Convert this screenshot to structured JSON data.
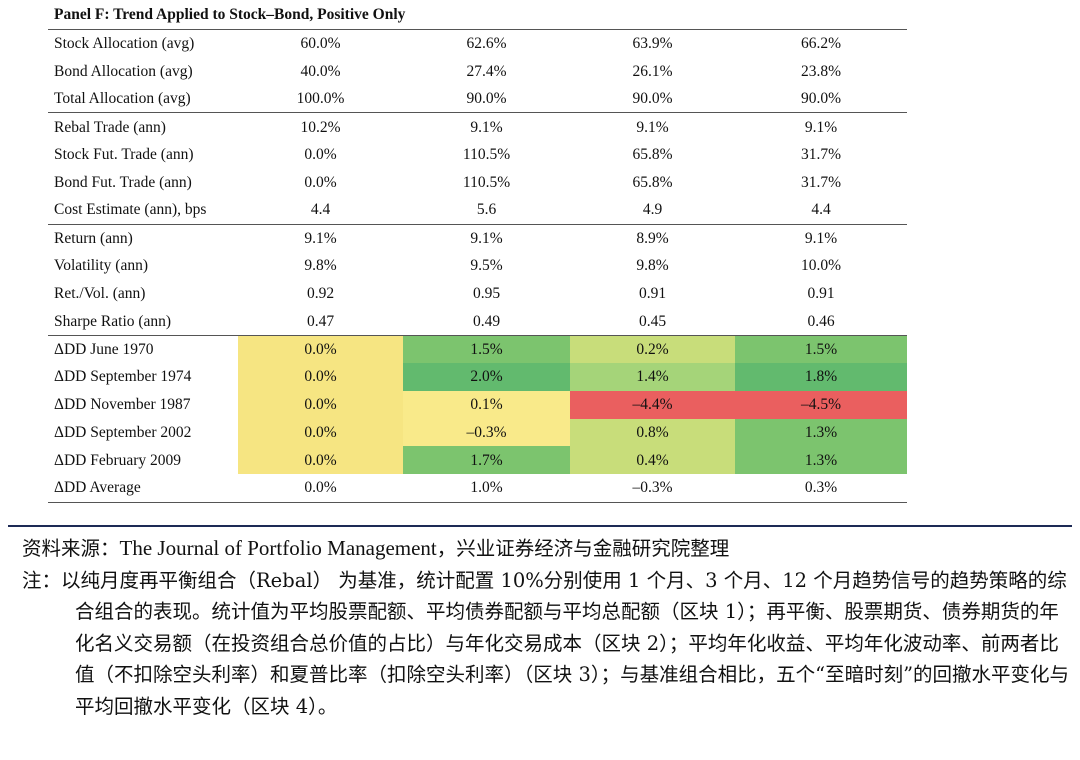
{
  "panel_title": "Panel F: Trend Applied to Stock–Bond, Positive Only",
  "colors": {
    "yellow": "#f6e582",
    "light_green": "#a5d479",
    "green": "#7cc46e",
    "dark_green": "#62ba6e",
    "red": "#ea5f5f",
    "pale_yellow": "#f9ea8a",
    "yellow_green": "#c8dd7a"
  },
  "rows": [
    {
      "label": "Stock Allocation (avg)",
      "values": [
        "60.0%",
        "62.6%",
        "63.9%",
        "66.2%"
      ],
      "group": "top"
    },
    {
      "label": "Bond Allocation (avg)",
      "values": [
        "40.0%",
        "27.4%",
        "26.1%",
        "23.8%"
      ]
    },
    {
      "label": "Total Allocation (avg)",
      "values": [
        "100.0%",
        "90.0%",
        "90.0%",
        "90.0%"
      ]
    },
    {
      "label": "Rebal Trade (ann)",
      "values": [
        "10.2%",
        "9.1%",
        "9.1%",
        "9.1%"
      ],
      "group": "sep"
    },
    {
      "label": "Stock Fut. Trade (ann)",
      "values": [
        "0.0%",
        "110.5%",
        "65.8%",
        "31.7%"
      ]
    },
    {
      "label": "Bond Fut. Trade (ann)",
      "values": [
        "0.0%",
        "110.5%",
        "65.8%",
        "31.7%"
      ]
    },
    {
      "label": "Cost Estimate (ann), bps",
      "values": [
        "4.4",
        "5.6",
        "4.9",
        "4.4"
      ]
    },
    {
      "label": "Return (ann)",
      "values": [
        "9.1%",
        "9.1%",
        "8.9%",
        "9.1%"
      ],
      "group": "sep"
    },
    {
      "label": "Volatility (ann)",
      "values": [
        "9.8%",
        "9.5%",
        "9.8%",
        "10.0%"
      ]
    },
    {
      "label": "Ret./Vol. (ann)",
      "values": [
        "0.92",
        "0.95",
        "0.91",
        "0.91"
      ]
    },
    {
      "label": "Sharpe Ratio (ann)",
      "values": [
        "0.47",
        "0.49",
        "0.45",
        "0.46"
      ]
    },
    {
      "label": "ΔDD June 1970",
      "values": [
        "0.0%",
        "1.5%",
        "0.2%",
        "1.5%"
      ],
      "group": "sep",
      "fills": [
        "yellow",
        "green",
        "yellow_green",
        "green"
      ]
    },
    {
      "label": "ΔDD September 1974",
      "values": [
        "0.0%",
        "2.0%",
        "1.4%",
        "1.8%"
      ],
      "fills": [
        "yellow",
        "dark_green",
        "light_green",
        "dark_green"
      ]
    },
    {
      "label": "ΔDD November 1987",
      "values": [
        "0.0%",
        "0.1%",
        "–4.4%",
        "–4.5%"
      ],
      "fills": [
        "yellow",
        "pale_yellow",
        "red",
        "red"
      ]
    },
    {
      "label": "ΔDD September 2002",
      "values": [
        "0.0%",
        "–0.3%",
        "0.8%",
        "1.3%"
      ],
      "fills": [
        "yellow",
        "pale_yellow",
        "yellow_green",
        "green"
      ]
    },
    {
      "label": "ΔDD February 2009",
      "values": [
        "0.0%",
        "1.7%",
        "0.4%",
        "1.3%"
      ],
      "fills": [
        "yellow",
        "green",
        "yellow_green",
        "green"
      ]
    },
    {
      "label": "ΔDD Average",
      "values": [
        "0.0%",
        "1.0%",
        "–0.3%",
        "0.3%"
      ],
      "group": "bottom"
    }
  ],
  "source": {
    "prefix": "资料来源：",
    "journal": "The Journal of Portfolio Management",
    "suffix": "，兴业证券经济与金融研究院整理"
  },
  "note": "注：以纯月度再平衡组合（Rebal） 为基准，统计配置 10%分别使用 1 个月、3 个月、12 个月趋势信号的趋势策略的综合组合的表现。统计值为平均股票配额、平均债券配额与平均总配额（区块 1）；再平衡、股票期货、债券期货的年化名义交易额（在投资组合总价值的占比）与年化交易成本（区块 2）；平均年化收益、平均年化波动率、前两者比值（不扣除空头利率）和夏普比率（扣除空头利率）（区块 3）；与基准组合相比，五个“至暗时刻”的回撤水平变化与平均回撤水平变化（区块 4）。"
}
